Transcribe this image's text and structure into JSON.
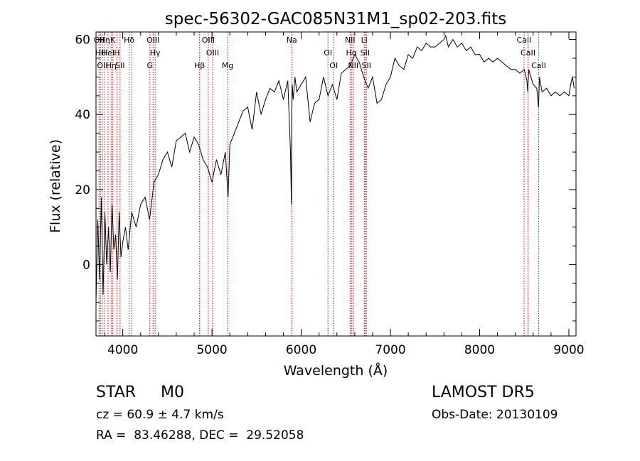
{
  "chart_data": {
    "type": "line",
    "title": "spec-56302-GAC085N31M1_sp02-203.fits",
    "xlabel": "Wavelength (Å)",
    "ylabel": "Flux (relative)",
    "xlim": [
      3700,
      9080
    ],
    "ylim": [
      -19,
      62
    ],
    "xticks": [
      4000,
      5000,
      6000,
      7000,
      8000,
      9000
    ],
    "yticks": [
      0,
      20,
      40,
      60
    ],
    "grid": false,
    "line_color": "#000000",
    "marker_color": "#cc0000",
    "series": [
      {
        "x": [
          3700,
          3720,
          3740,
          3760,
          3780,
          3800,
          3820,
          3840,
          3860,
          3880,
          3900,
          3920,
          3940,
          3960,
          3980,
          4000,
          4030,
          4060,
          4100,
          4150,
          4200,
          4250,
          4300,
          4350,
          4400,
          4450,
          4500,
          4550,
          4600,
          4650,
          4700,
          4750,
          4800,
          4850,
          4900,
          4950,
          5000,
          5050,
          5100,
          5150,
          5180,
          5200,
          5250,
          5300,
          5350,
          5400,
          5450,
          5500,
          5550,
          5600,
          5650,
          5700,
          5750,
          5800,
          5850,
          5880,
          5890,
          5895,
          5900,
          5910,
          5930,
          5950,
          6000,
          6050,
          6100,
          6150,
          6200,
          6250,
          6300,
          6350,
          6400,
          6450,
          6500,
          6550,
          6600,
          6650,
          6700,
          6750,
          6800,
          6850,
          6900,
          6950,
          7000,
          7050,
          7100,
          7150,
          7200,
          7250,
          7300,
          7350,
          7400,
          7450,
          7500,
          7550,
          7600,
          7620,
          7650,
          7700,
          7750,
          7800,
          7850,
          7900,
          7950,
          8000,
          8050,
          8100,
          8150,
          8200,
          8250,
          8300,
          8350,
          8400,
          8450,
          8500,
          8530,
          8540,
          8550,
          8600,
          8640,
          8660,
          8670,
          8700,
          8750,
          8800,
          8850,
          8900,
          8950,
          9000,
          9020,
          9040,
          9060
        ],
        "y": [
          -10,
          12,
          -4,
          18,
          -8,
          14,
          0,
          10,
          -2,
          16,
          4,
          8,
          -4,
          14,
          2,
          6,
          10,
          4,
          14,
          10,
          16,
          18,
          12,
          22,
          24,
          28,
          30,
          26,
          33,
          34,
          35,
          30,
          34,
          32,
          28,
          26,
          22,
          28,
          24,
          30,
          18,
          32,
          35,
          38,
          41,
          42,
          36,
          46,
          40,
          44,
          47,
          46,
          49,
          44,
          49,
          30,
          16,
          40,
          48,
          44,
          50,
          46,
          48,
          50,
          38,
          43,
          44,
          50,
          45,
          48,
          44,
          51,
          52,
          53,
          56,
          54,
          50,
          47,
          50,
          43,
          44,
          48,
          50,
          55,
          53,
          52,
          56,
          55,
          58,
          57,
          59,
          58,
          58,
          59,
          60,
          61,
          58,
          60,
          58,
          59,
          57,
          58,
          56,
          56,
          54,
          55,
          54,
          55,
          54,
          53,
          52,
          52,
          51,
          52,
          49,
          46,
          52,
          48,
          47,
          42,
          50,
          46,
          47,
          45,
          46,
          45,
          46,
          45,
          48,
          50,
          47
        ]
      }
    ],
    "lines": [
      {
        "x": 3734,
        "labels": [
          "OII"
        ]
      },
      {
        "x": 3750,
        "labels": [
          "Hθ"
        ]
      },
      {
        "x": 3771,
        "labels": [
          "OII"
        ]
      },
      {
        "x": 3798,
        "labels": [
          "Hη"
        ]
      },
      {
        "x": 3835,
        "labels": [
          "HeI"
        ]
      },
      {
        "x": 3869,
        "labels": [
          "Hη"
        ]
      },
      {
        "x": 3889,
        "labels": [
          "K"
        ]
      },
      {
        "x": 3934,
        "labels": [
          "H"
        ]
      },
      {
        "x": 3969,
        "labels": [
          "SII"
        ]
      },
      {
        "x": 4072,
        "labels": [
          "Hδ"
        ]
      },
      {
        "x": 4102,
        "labels": []
      },
      {
        "x": 4304,
        "labels": [
          "G"
        ]
      },
      {
        "x": 4340,
        "labels": [
          "OIII"
        ]
      },
      {
        "x": 4363,
        "labels": [
          "Hγ"
        ]
      },
      {
        "x": 4861,
        "labels": [
          "Hβ"
        ]
      },
      {
        "x": 4959,
        "labels": [
          "OIII"
        ]
      },
      {
        "x": 5007,
        "labels": [
          "OIII"
        ]
      },
      {
        "x": 5175,
        "labels": [
          "Mg"
        ]
      },
      {
        "x": 5894,
        "labels": [
          "Na"
        ]
      },
      {
        "x": 6300,
        "labels": [
          "OI"
        ]
      },
      {
        "x": 6364,
        "labels": [
          "OI"
        ]
      },
      {
        "x": 6548,
        "labels": [
          "NII"
        ]
      },
      {
        "x": 6563,
        "labels": [
          "Hα"
        ]
      },
      {
        "x": 6583,
        "labels": [
          "NII"
        ]
      },
      {
        "x": 6707,
        "labels": [
          "Li"
        ]
      },
      {
        "x": 6716,
        "labels": [
          "SII"
        ]
      },
      {
        "x": 6731,
        "labels": [
          "SII"
        ]
      },
      {
        "x": 8498,
        "labels": [
          "CaII"
        ]
      },
      {
        "x": 8542,
        "labels": [
          "CaII"
        ]
      },
      {
        "x": 8662,
        "labels": [
          "CaII"
        ]
      }
    ]
  },
  "info": {
    "class_text": "STAR     M0",
    "survey": "LAMOST DR5",
    "cz": "cz = 60.9 ± 4.7 km/s",
    "obs_date": "Obs-Date: 20130109",
    "coords": "RA =  83.46288, DEC =  29.52058"
  }
}
